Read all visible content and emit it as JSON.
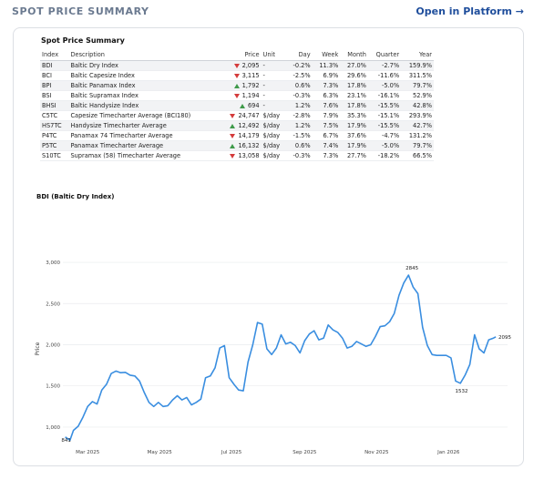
{
  "header": {
    "title": "SPOT PRICE SUMMARY",
    "open_link": "Open in Platform →"
  },
  "table": {
    "title": "Spot Price Summary",
    "columns": [
      "Index",
      "Description",
      "Price",
      "Unit",
      "Day",
      "Week",
      "Month",
      "Quarter",
      "Year"
    ],
    "rows": [
      {
        "index": "BDI",
        "description": "Baltic Dry Index",
        "dir": "down",
        "price": "2,095",
        "unit": "-",
        "day": "-0.2%",
        "week": "11.3%",
        "month": "27.0%",
        "quarter": "-2.7%",
        "year": "159.9%"
      },
      {
        "index": "BCI",
        "description": "Baltic Capesize Index",
        "dir": "down",
        "price": "3,115",
        "unit": "-",
        "day": "-2.5%",
        "week": "6.9%",
        "month": "29.6%",
        "quarter": "-11.6%",
        "year": "311.5%"
      },
      {
        "index": "BPI",
        "description": "Baltic Panamax Index",
        "dir": "up",
        "price": "1,792",
        "unit": "-",
        "day": "0.6%",
        "week": "7.3%",
        "month": "17.8%",
        "quarter": "-5.0%",
        "year": "79.7%"
      },
      {
        "index": "BSI",
        "description": "Baltic Supramax Index",
        "dir": "down",
        "price": "1,194",
        "unit": "-",
        "day": "-0.3%",
        "week": "6.3%",
        "month": "23.1%",
        "quarter": "-16.1%",
        "year": "52.9%"
      },
      {
        "index": "BHSI",
        "description": "Baltic Handysize Index",
        "dir": "up",
        "price": "694",
        "unit": "-",
        "day": "1.2%",
        "week": "7.6%",
        "month": "17.8%",
        "quarter": "-15.5%",
        "year": "42.8%"
      },
      {
        "index": "C5TC",
        "description": "Capesize Timecharter Average (BCI180)",
        "dir": "down",
        "price": "24,747",
        "unit": "$/day",
        "day": "-2.8%",
        "week": "7.9%",
        "month": "35.3%",
        "quarter": "-15.1%",
        "year": "293.9%"
      },
      {
        "index": "HS7TC",
        "description": "Handysize Timecharter Average",
        "dir": "up",
        "price": "12,492",
        "unit": "$/day",
        "day": "1.2%",
        "week": "7.5%",
        "month": "17.9%",
        "quarter": "-15.5%",
        "year": "42.7%"
      },
      {
        "index": "P4TC",
        "description": "Panamax 74 Timecharter Average",
        "dir": "down",
        "price": "14,179",
        "unit": "$/day",
        "day": "-1.5%",
        "week": "6.7%",
        "month": "37.6%",
        "quarter": "-4.7%",
        "year": "131.2%"
      },
      {
        "index": "P5TC",
        "description": "Panamax Timecharter Average",
        "dir": "up",
        "price": "16,132",
        "unit": "$/day",
        "day": "0.6%",
        "week": "7.4%",
        "month": "17.9%",
        "quarter": "-5.0%",
        "year": "79.7%"
      },
      {
        "index": "S10TC",
        "description": "Supramax (58) Timecharter Average",
        "dir": "down",
        "price": "13,058",
        "unit": "$/day",
        "day": "-0.3%",
        "week": "7.3%",
        "month": "27.7%",
        "quarter": "-18.2%",
        "year": "66.5%"
      }
    ]
  },
  "chart_data": {
    "type": "line",
    "title": "BDI (Baltic Dry Index)",
    "ylabel": "Price",
    "xlabel": "",
    "ylim": [
      800,
      3100
    ],
    "yticks": [
      1000,
      1500,
      2000,
      2500,
      3000
    ],
    "ytick_labels": [
      "1,000",
      "1,500",
      "2,000",
      "2,500",
      "3,000"
    ],
    "xtick_labels": [
      "Mar 2025",
      "May 2025",
      "Jul 2025",
      "Sep 2025",
      "Nov 2025",
      "Jan 2026"
    ],
    "xtick_dates": [
      "2025-03-01",
      "2025-05-01",
      "2025-07-01",
      "2025-09-01",
      "2025-11-01",
      "2026-01-01"
    ],
    "line_color": "#3a8ee0",
    "annotations": [
      {
        "label": "2845",
        "date": "2025-12-01",
        "value": 2845
      },
      {
        "label": "1532",
        "date": "2026-01-12",
        "value": 1532
      },
      {
        "label": "2095",
        "date": "2026-02-10",
        "value": 2095
      }
    ],
    "series": [
      {
        "points": [
          [
            "2025-02-10",
            880
          ],
          [
            "2025-02-14",
            841
          ],
          [
            "2025-02-17",
            960
          ],
          [
            "2025-02-21",
            1010
          ],
          [
            "2025-02-25",
            1120
          ],
          [
            "2025-03-01",
            1250
          ],
          [
            "2025-03-05",
            1310
          ],
          [
            "2025-03-09",
            1280
          ],
          [
            "2025-03-13",
            1450
          ],
          [
            "2025-03-17",
            1520
          ],
          [
            "2025-03-21",
            1650
          ],
          [
            "2025-03-25",
            1680
          ],
          [
            "2025-03-29",
            1660
          ],
          [
            "2025-04-02",
            1665
          ],
          [
            "2025-04-06",
            1630
          ],
          [
            "2025-04-10",
            1620
          ],
          [
            "2025-04-14",
            1560
          ],
          [
            "2025-04-18",
            1420
          ],
          [
            "2025-04-22",
            1300
          ],
          [
            "2025-04-26",
            1250
          ],
          [
            "2025-04-30",
            1300
          ],
          [
            "2025-05-04",
            1250
          ],
          [
            "2025-05-08",
            1260
          ],
          [
            "2025-05-12",
            1330
          ],
          [
            "2025-05-16",
            1380
          ],
          [
            "2025-05-20",
            1330
          ],
          [
            "2025-05-24",
            1360
          ],
          [
            "2025-05-28",
            1270
          ],
          [
            "2025-06-01",
            1300
          ],
          [
            "2025-06-05",
            1340
          ],
          [
            "2025-06-09",
            1600
          ],
          [
            "2025-06-13",
            1620
          ],
          [
            "2025-06-17",
            1720
          ],
          [
            "2025-06-21",
            1960
          ],
          [
            "2025-06-25",
            1990
          ],
          [
            "2025-06-29",
            1600
          ],
          [
            "2025-07-03",
            1520
          ],
          [
            "2025-07-07",
            1450
          ],
          [
            "2025-07-11",
            1440
          ],
          [
            "2025-07-15",
            1790
          ],
          [
            "2025-07-19",
            2000
          ],
          [
            "2025-07-23",
            2270
          ],
          [
            "2025-07-27",
            2250
          ],
          [
            "2025-07-31",
            1950
          ],
          [
            "2025-08-04",
            1880
          ],
          [
            "2025-08-08",
            1960
          ],
          [
            "2025-08-12",
            2120
          ],
          [
            "2025-08-16",
            2010
          ],
          [
            "2025-08-20",
            2030
          ],
          [
            "2025-08-24",
            1990
          ],
          [
            "2025-08-28",
            1900
          ],
          [
            "2025-09-01",
            2050
          ],
          [
            "2025-09-05",
            2130
          ],
          [
            "2025-09-09",
            2170
          ],
          [
            "2025-09-13",
            2060
          ],
          [
            "2025-09-17",
            2080
          ],
          [
            "2025-09-21",
            2240
          ],
          [
            "2025-09-25",
            2180
          ],
          [
            "2025-09-29",
            2150
          ],
          [
            "2025-10-03",
            2080
          ],
          [
            "2025-10-07",
            1960
          ],
          [
            "2025-10-11",
            1980
          ],
          [
            "2025-10-15",
            2040
          ],
          [
            "2025-10-19",
            2010
          ],
          [
            "2025-10-23",
            1980
          ],
          [
            "2025-10-27",
            2000
          ],
          [
            "2025-10-31",
            2100
          ],
          [
            "2025-11-04",
            2220
          ],
          [
            "2025-11-08",
            2230
          ],
          [
            "2025-11-12",
            2280
          ],
          [
            "2025-11-16",
            2380
          ],
          [
            "2025-11-20",
            2600
          ],
          [
            "2025-11-24",
            2750
          ],
          [
            "2025-11-28",
            2845
          ],
          [
            "2025-12-02",
            2700
          ],
          [
            "2025-12-06",
            2620
          ],
          [
            "2025-12-10",
            2210
          ],
          [
            "2025-12-14",
            1990
          ],
          [
            "2025-12-18",
            1880
          ],
          [
            "2025-12-22",
            1870
          ],
          [
            "2025-12-26",
            1870
          ],
          [
            "2025-12-30",
            1870
          ],
          [
            "2026-01-03",
            1840
          ],
          [
            "2026-01-07",
            1560
          ],
          [
            "2026-01-11",
            1532
          ],
          [
            "2026-01-15",
            1630
          ],
          [
            "2026-01-19",
            1760
          ],
          [
            "2026-01-23",
            2120
          ],
          [
            "2026-01-27",
            1950
          ],
          [
            "2026-01-31",
            1900
          ],
          [
            "2026-02-04",
            2060
          ],
          [
            "2026-02-08",
            2080
          ],
          [
            "2026-02-10",
            2095
          ]
        ]
      }
    ]
  }
}
